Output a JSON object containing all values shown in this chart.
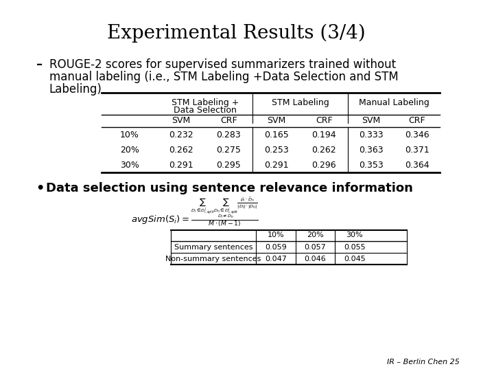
{
  "title": "Experimental Results (3/4)",
  "bullet1": "ROUGE-2 scores for supervised summarizers trained without manual labeling (i.e., STM Labeling +Data Selection and STM Labeling)",
  "bullet2": "Data selection using sentence relevance information",
  "table1": {
    "col_groups": [
      "STM Labeling +\nData Selection",
      "STM Labeling",
      "Manual Labeling"
    ],
    "col_subheaders": [
      "SVM",
      "CRF",
      "SVM",
      "CRF",
      "SVM",
      "CRF"
    ],
    "rows": [
      [
        "10%",
        "0.232",
        "0.283",
        "0.165",
        "0.194",
        "0.333",
        "0.346"
      ],
      [
        "20%",
        "0.262",
        "0.275",
        "0.253",
        "0.262",
        "0.363",
        "0.371"
      ],
      [
        "30%",
        "0.291",
        "0.295",
        "0.291",
        "0.296",
        "0.353",
        "0.364"
      ]
    ]
  },
  "table2": {
    "col_headers": [
      "",
      "10%",
      "20%",
      "30%"
    ],
    "rows": [
      [
        "Summary sentences",
        "0.059",
        "0.057",
        "0.055"
      ],
      [
        "Non-summary sentences",
        "0.047",
        "0.046",
        "0.045"
      ]
    ]
  },
  "footer": "IR – Berlin Chen 25",
  "bg_color": "#ffffff",
  "text_color": "#000000",
  "line_color": "#000000"
}
